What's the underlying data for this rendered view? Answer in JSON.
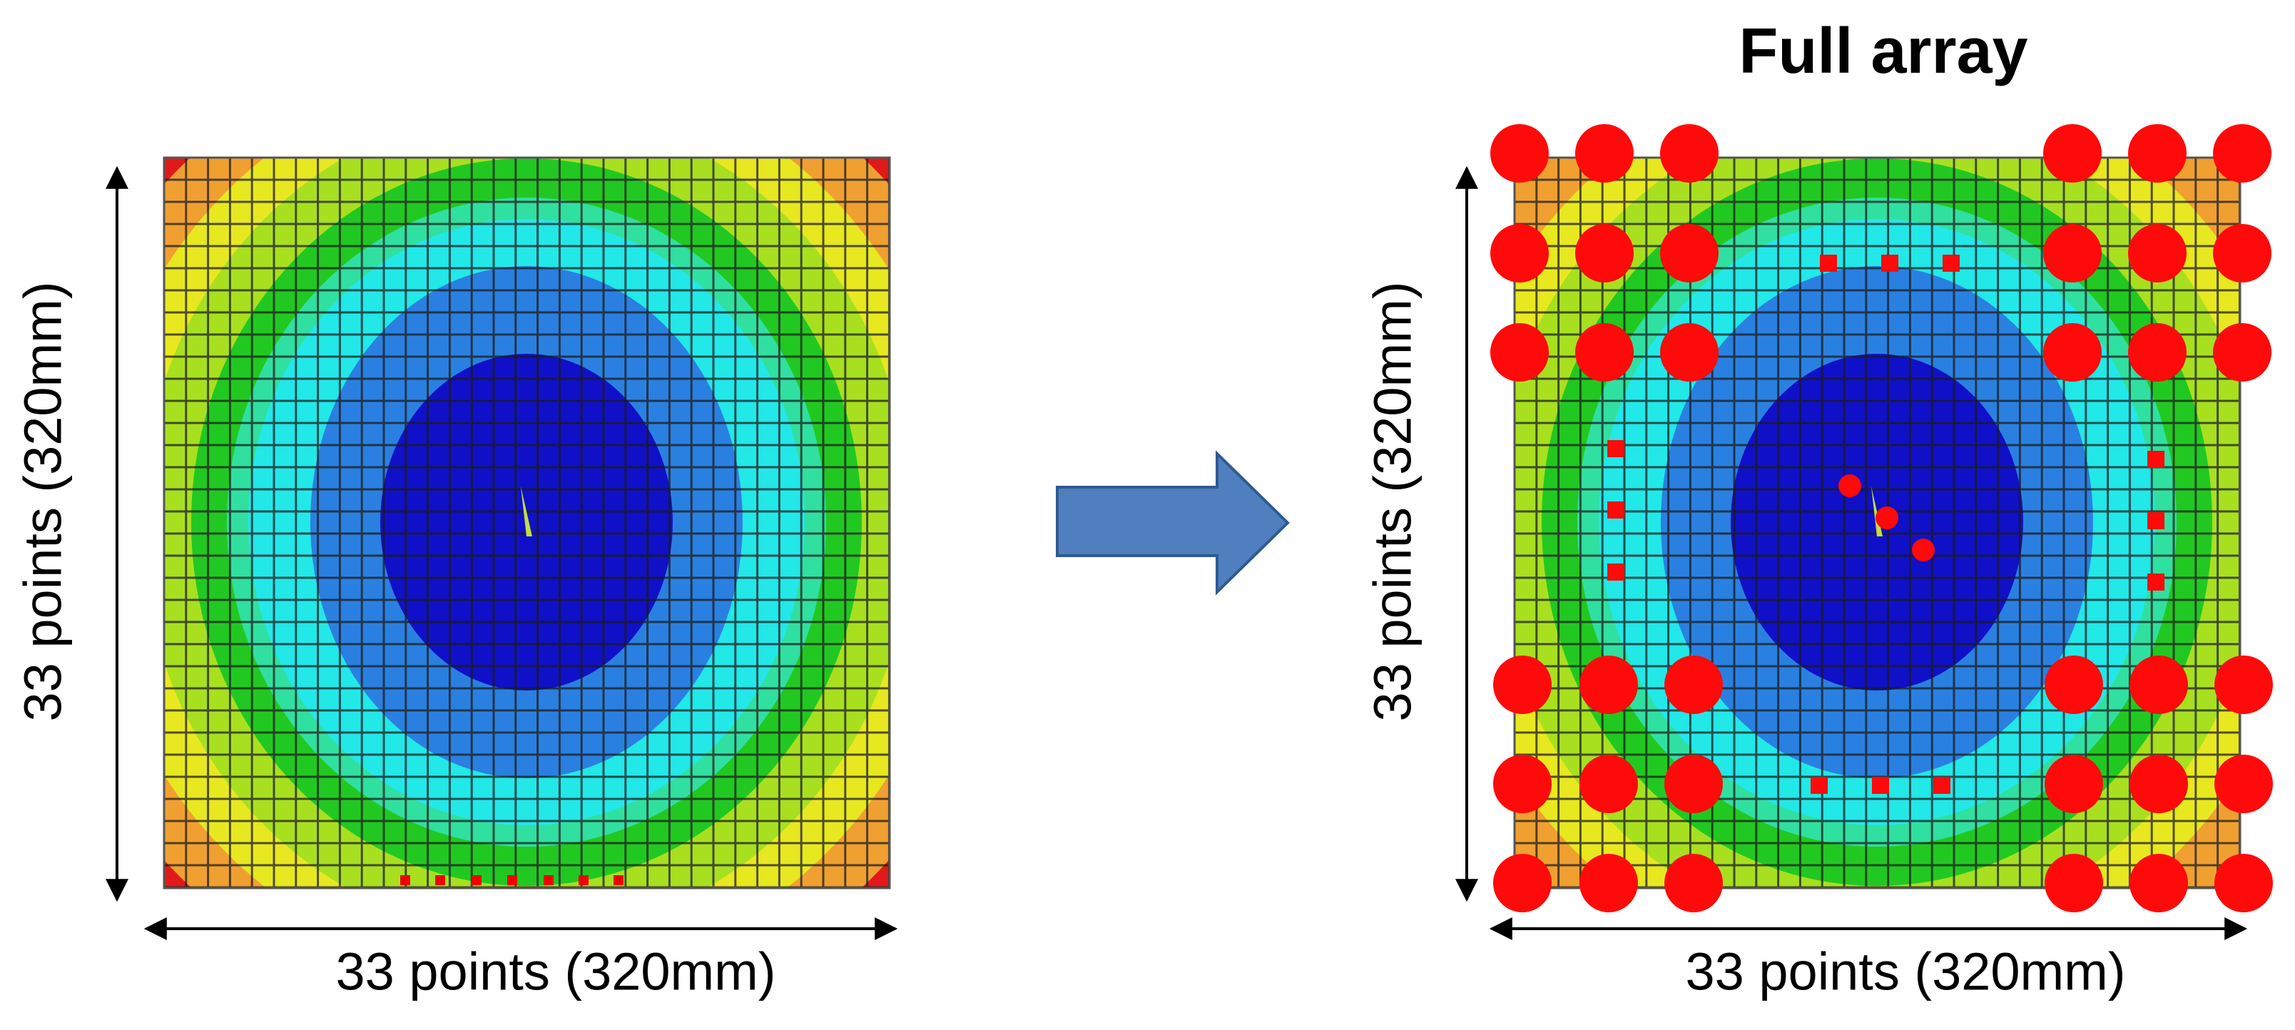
{
  "left_panel": {
    "vertical_label": "33 points (320mm)",
    "horizontal_label": "33 points (320mm)"
  },
  "right_panel": {
    "title": "Full array",
    "vertical_label": "33 points (320mm)",
    "horizontal_label": "33 points (320mm)"
  }
}
